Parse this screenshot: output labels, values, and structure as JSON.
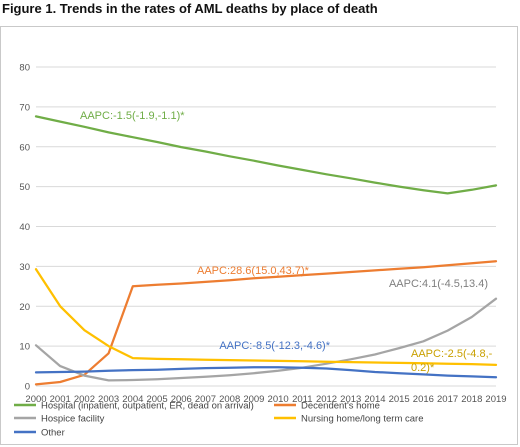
{
  "figure_title": "Figure 1. Trends in the rates of AML deaths by place of death",
  "chart_data": {
    "type": "line",
    "title": "Figure 1. Trends in the rates of AML deaths by place of death",
    "xlabel": "",
    "ylabel": "",
    "ylim": [
      0,
      80
    ],
    "yticks": [
      0,
      10,
      20,
      30,
      40,
      50,
      60,
      70,
      80
    ],
    "grid": "horizontal",
    "legend_position": "bottom",
    "x": [
      2000,
      2001,
      2002,
      2003,
      2004,
      2005,
      2006,
      2007,
      2008,
      2009,
      2010,
      2011,
      2012,
      2013,
      2014,
      2015,
      2016,
      2017,
      2018,
      2019
    ],
    "series": [
      {
        "name": "Hospital (inpatient, outpatient, ER, dead on arrival)",
        "color": "#70ad47",
        "values": [
          67.6,
          66.3,
          65.0,
          63.6,
          62.4,
          61.2,
          59.9,
          58.8,
          57.6,
          56.5,
          55.3,
          54.2,
          53.1,
          52.1,
          51.0,
          50.0,
          49.1,
          48.3,
          49.2,
          50.3
        ]
      },
      {
        "name": "Decendent's home",
        "color": "#ed7d31",
        "values": [
          0.4,
          1.0,
          2.8,
          8.2,
          25.0,
          25.4,
          25.7,
          26.1,
          26.5,
          27.0,
          27.4,
          27.8,
          28.2,
          28.6,
          29.0,
          29.4,
          29.8,
          30.3,
          30.8,
          31.3
        ]
      },
      {
        "name": "Hospice facility",
        "color": "#a5a5a5",
        "values": [
          10.2,
          5.0,
          2.6,
          1.4,
          1.5,
          1.7,
          2.0,
          2.3,
          2.7,
          3.2,
          3.8,
          4.6,
          5.6,
          6.7,
          7.9,
          9.5,
          11.2,
          13.9,
          17.3,
          21.9
        ]
      },
      {
        "name": "Nursing home/long term care",
        "color": "#ffc000",
        "values": [
          29.3,
          20.0,
          14.0,
          10.0,
          7.0,
          6.8,
          6.7,
          6.6,
          6.5,
          6.4,
          6.3,
          6.2,
          6.1,
          6.0,
          5.9,
          5.8,
          5.7,
          5.6,
          5.5,
          5.3
        ]
      },
      {
        "name": "Other",
        "color": "#4472c4",
        "values": [
          3.4,
          3.5,
          3.6,
          3.8,
          4.0,
          4.1,
          4.3,
          4.5,
          4.6,
          4.7,
          4.7,
          4.6,
          4.4,
          4.0,
          3.5,
          3.2,
          2.9,
          2.6,
          2.4,
          2.2
        ]
      }
    ],
    "annotations": [
      {
        "text": "AAPC:-1.5(-1.9,-1.1)*",
        "color": "#70ad47"
      },
      {
        "text": "AAPC:28.6(15.0,43.7)*",
        "color": "#ed7d31"
      },
      {
        "text": "AAPC:4.1(-4.5,13.4)",
        "color": "#7f7f7f"
      },
      {
        "text": "AAPC:-8.5(-12.3,-4.6)*",
        "color": "#4472c4"
      },
      {
        "text": "AAPC:-2.5(-4.8,-",
        "color": "#c9a000"
      },
      {
        "text": "0.2)*",
        "color": "#c9a000"
      }
    ]
  }
}
